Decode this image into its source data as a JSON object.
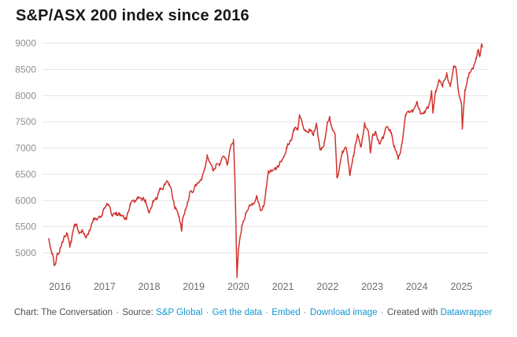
{
  "colors": {
    "background": "#ffffff",
    "title": "#191919",
    "line": "#d2322d",
    "grid": "#e4e4e4",
    "y_label": "#8f8f8f",
    "x_label": "#6e6e6e",
    "footer_text": "#4f4f4f",
    "link": "#1496d2"
  },
  "footer": {
    "segments": [
      {
        "type": "text",
        "name": "chart-credit",
        "text": "Chart: The Conversation"
      },
      {
        "type": "sep",
        "name": "separator",
        "text": "·"
      },
      {
        "type": "text",
        "name": "source-label",
        "text": "Source:"
      },
      {
        "type": "link",
        "name": "source-link",
        "text": "S&P Global"
      },
      {
        "type": "sep",
        "name": "separator",
        "text": "·"
      },
      {
        "type": "link",
        "name": "get-the-data-link",
        "text": "Get the data"
      },
      {
        "type": "sep",
        "name": "separator",
        "text": "·"
      },
      {
        "type": "link",
        "name": "embed-link",
        "text": "Embed"
      },
      {
        "type": "sep",
        "name": "separator",
        "text": "·"
      },
      {
        "type": "link",
        "name": "download-image-link",
        "text": "Download image"
      },
      {
        "type": "sep",
        "name": "separator",
        "text": "·"
      },
      {
        "type": "text",
        "name": "created-with-label",
        "text": "Created with"
      },
      {
        "type": "link",
        "name": "datawrapper-link",
        "text": "Datawrapper"
      }
    ]
  },
  "chart_data": {
    "type": "line",
    "title": "S&P/ASX 200 index since 2016",
    "xlabel": "",
    "ylabel": "",
    "x_ticks": [
      2016,
      2017,
      2018,
      2019,
      2020,
      2021,
      2022,
      2023,
      2024,
      2025
    ],
    "y_ticks": [
      5000,
      5500,
      6000,
      6500,
      7000,
      7500,
      8000,
      8500,
      9000
    ],
    "xlim": [
      2016.0,
      2025.72
    ],
    "ylim": [
      4540,
      9100
    ],
    "grid": "horizontal",
    "legend": "none",
    "series": [
      {
        "name": "S&P/ASX 200 index",
        "color": "#d2322d",
        "points": [
          [
            2016.0,
            5270
          ],
          [
            2016.08,
            5005
          ],
          [
            2016.12,
            4762
          ],
          [
            2016.17,
            4880
          ],
          [
            2016.25,
            5083
          ],
          [
            2016.33,
            5252
          ],
          [
            2016.42,
            5379
          ],
          [
            2016.47,
            5103
          ],
          [
            2016.5,
            5233
          ],
          [
            2016.58,
            5562
          ],
          [
            2016.67,
            5433
          ],
          [
            2016.75,
            5436
          ],
          [
            2016.83,
            5318
          ],
          [
            2016.92,
            5440
          ],
          [
            2017.0,
            5666
          ],
          [
            2017.08,
            5621
          ],
          [
            2017.17,
            5712
          ],
          [
            2017.25,
            5865
          ],
          [
            2017.33,
            5924
          ],
          [
            2017.42,
            5724
          ],
          [
            2017.5,
            5721
          ],
          [
            2017.58,
            5720
          ],
          [
            2017.67,
            5715
          ],
          [
            2017.75,
            5682
          ],
          [
            2017.83,
            5909
          ],
          [
            2017.92,
            5970
          ],
          [
            2018.0,
            6065
          ],
          [
            2018.08,
            6037
          ],
          [
            2018.17,
            6016
          ],
          [
            2018.25,
            5759
          ],
          [
            2018.33,
            5982
          ],
          [
            2018.42,
            6012
          ],
          [
            2018.5,
            6195
          ],
          [
            2018.58,
            6280
          ],
          [
            2018.65,
            6373
          ],
          [
            2018.7,
            6319
          ],
          [
            2018.75,
            6208
          ],
          [
            2018.83,
            5830
          ],
          [
            2018.92,
            5667
          ],
          [
            2018.98,
            5410
          ],
          [
            2019.0,
            5646
          ],
          [
            2019.08,
            5865
          ],
          [
            2019.17,
            6169
          ],
          [
            2019.25,
            6181
          ],
          [
            2019.33,
            6326
          ],
          [
            2019.42,
            6397
          ],
          [
            2019.5,
            6619
          ],
          [
            2019.55,
            6876
          ],
          [
            2019.58,
            6813
          ],
          [
            2019.67,
            6604
          ],
          [
            2019.75,
            6688
          ],
          [
            2019.83,
            6663
          ],
          [
            2019.92,
            6846
          ],
          [
            2020.0,
            6684
          ],
          [
            2020.08,
            7017
          ],
          [
            2020.14,
            7163
          ],
          [
            2020.17,
            6441
          ],
          [
            2020.22,
            4546
          ],
          [
            2020.25,
            5077
          ],
          [
            2020.33,
            5522
          ],
          [
            2020.42,
            5756
          ],
          [
            2020.5,
            5898
          ],
          [
            2020.58,
            5928
          ],
          [
            2020.67,
            6061
          ],
          [
            2020.75,
            5816
          ],
          [
            2020.83,
            5928
          ],
          [
            2020.92,
            6518
          ],
          [
            2021.0,
            6587
          ],
          [
            2021.08,
            6607
          ],
          [
            2021.17,
            6673
          ],
          [
            2021.25,
            6791
          ],
          [
            2021.33,
            7026
          ],
          [
            2021.42,
            7162
          ],
          [
            2021.5,
            7313
          ],
          [
            2021.58,
            7393
          ],
          [
            2021.62,
            7628
          ],
          [
            2021.67,
            7535
          ],
          [
            2021.75,
            7332
          ],
          [
            2021.83,
            7324
          ],
          [
            2021.92,
            7256
          ],
          [
            2022.0,
            7445
          ],
          [
            2022.08,
            6972
          ],
          [
            2022.17,
            7049
          ],
          [
            2022.25,
            7500
          ],
          [
            2022.3,
            7592
          ],
          [
            2022.33,
            7435
          ],
          [
            2022.42,
            7211
          ],
          [
            2022.46,
            6433
          ],
          [
            2022.5,
            6568
          ],
          [
            2022.58,
            6945
          ],
          [
            2022.67,
            6987
          ],
          [
            2022.75,
            6474
          ],
          [
            2022.83,
            6863
          ],
          [
            2022.92,
            7284
          ],
          [
            2023.0,
            7039
          ],
          [
            2023.08,
            7477
          ],
          [
            2023.17,
            7258
          ],
          [
            2023.21,
            6898
          ],
          [
            2023.25,
            7178
          ],
          [
            2023.33,
            7309
          ],
          [
            2023.42,
            7091
          ],
          [
            2023.5,
            7203
          ],
          [
            2023.58,
            7410
          ],
          [
            2023.67,
            7305
          ],
          [
            2023.75,
            7049
          ],
          [
            2023.83,
            6781
          ],
          [
            2023.92,
            7087
          ],
          [
            2024.0,
            7591
          ],
          [
            2024.08,
            7681
          ],
          [
            2024.17,
            7699
          ],
          [
            2024.25,
            7897
          ],
          [
            2024.33,
            7664
          ],
          [
            2024.42,
            7702
          ],
          [
            2024.5,
            7768
          ],
          [
            2024.58,
            8092
          ],
          [
            2024.61,
            7650
          ],
          [
            2024.67,
            8092
          ],
          [
            2024.75,
            8270
          ],
          [
            2024.83,
            8160
          ],
          [
            2024.92,
            8436
          ],
          [
            2025.0,
            8159
          ],
          [
            2025.08,
            8532
          ],
          [
            2025.12,
            8556
          ],
          [
            2025.17,
            8172
          ],
          [
            2025.25,
            7843
          ],
          [
            2025.27,
            7343
          ],
          [
            2025.33,
            8126
          ],
          [
            2025.42,
            8434
          ],
          [
            2025.5,
            8542
          ],
          [
            2025.58,
            8742
          ],
          [
            2025.63,
            8880
          ],
          [
            2025.66,
            8760
          ],
          [
            2025.7,
            8985
          ],
          [
            2025.72,
            8935
          ]
        ]
      }
    ]
  }
}
